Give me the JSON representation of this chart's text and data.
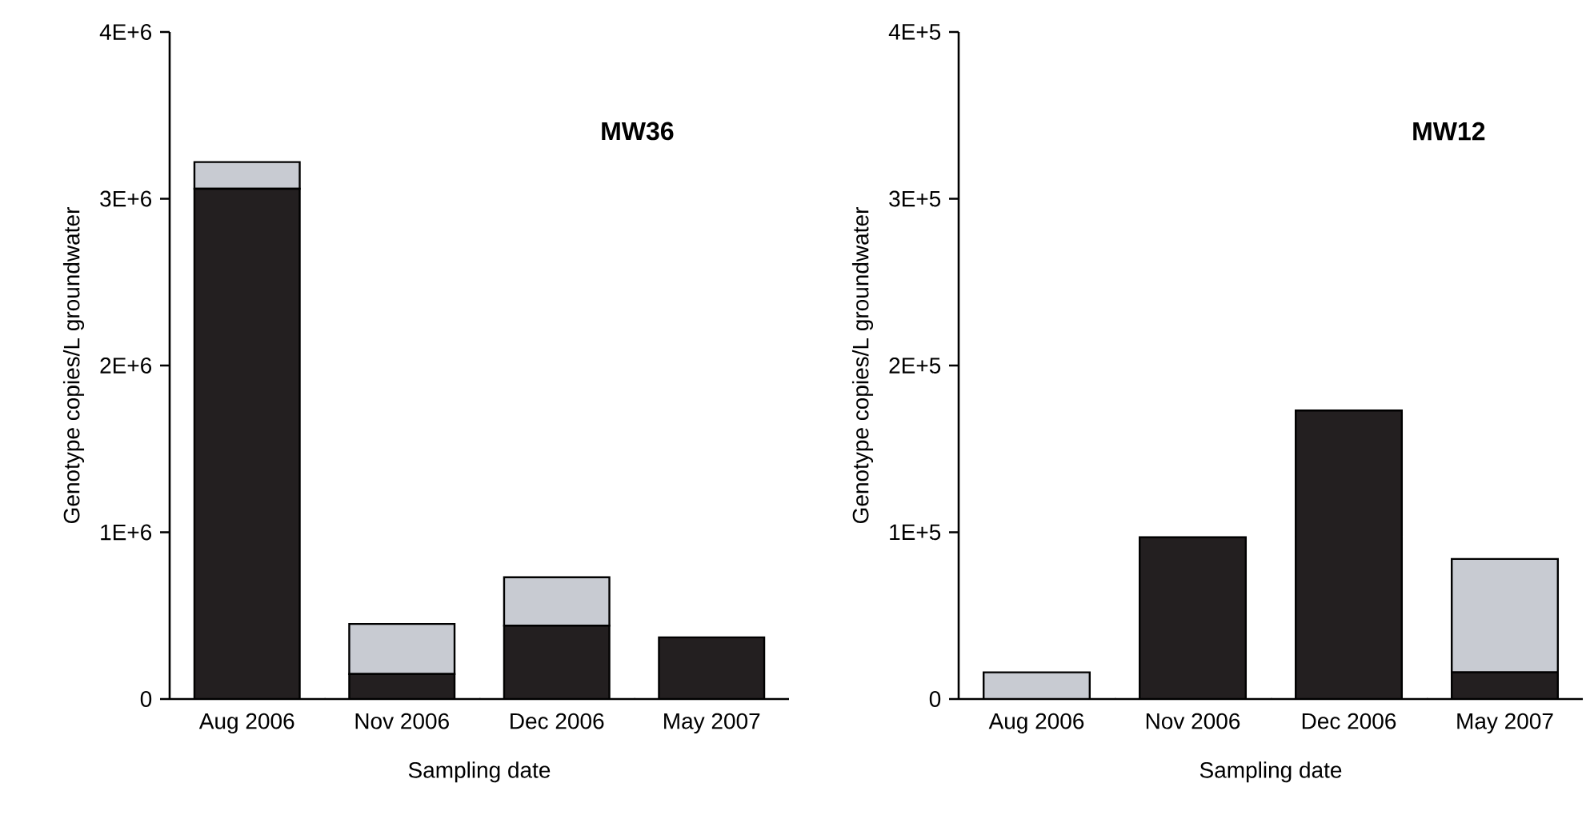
{
  "chart_data": [
    {
      "type": "bar",
      "title": "MW36",
      "xlabel": "Sampling date",
      "ylabel": "Genotype copies/L groundwater",
      "stacked": true,
      "categories": [
        "Aug 2006",
        "Nov 2006",
        "Dec 2006",
        "May 2007"
      ],
      "series": [
        {
          "color": "#231f20",
          "values": [
            3060000,
            150000,
            440000,
            370000
          ]
        },
        {
          "color": "#c8cbd2",
          "values": [
            160000,
            300000,
            290000,
            0
          ]
        }
      ],
      "ylim": [
        0,
        4000000
      ],
      "yticks": [
        0,
        {
          "value": 1000000,
          "label": "1E+6"
        },
        {
          "value": 2000000,
          "label": "2E+6"
        },
        {
          "value": 3000000,
          "label": "3E+6"
        },
        {
          "value": 4000000,
          "label": "4E+6"
        }
      ]
    },
    {
      "type": "bar",
      "title": "MW12",
      "xlabel": "Sampling date",
      "ylabel": "Genotype copies/L groundwater",
      "stacked": true,
      "categories": [
        "Aug 2006",
        "Nov 2006",
        "Dec 2006",
        "May 2007"
      ],
      "series": [
        {
          "color": "#231f20",
          "values": [
            0,
            97000,
            173000,
            16000
          ]
        },
        {
          "color": "#c8cbd2",
          "values": [
            16000,
            0,
            0,
            68000
          ]
        }
      ],
      "ylim": [
        0,
        400000
      ],
      "yticks": [
        0,
        {
          "value": 100000,
          "label": "1E+5"
        },
        {
          "value": 200000,
          "label": "2E+5"
        },
        {
          "value": 300000,
          "label": "3E+5"
        },
        {
          "value": 400000,
          "label": "4E+5"
        }
      ]
    }
  ]
}
